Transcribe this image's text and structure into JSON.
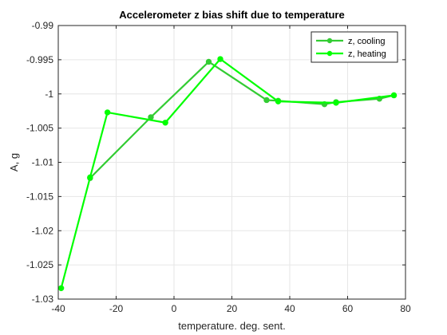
{
  "chart_data": {
    "type": "line",
    "title": "Accelerometer z bias shift due to temperature",
    "xlabel": "temperature. deg. sent.",
    "ylabel": "A, g",
    "xlim": [
      -40,
      80
    ],
    "ylim": [
      -1.03,
      -0.99
    ],
    "xticks": [
      "-40",
      "-20",
      "0",
      "20",
      "40",
      "60",
      "80"
    ],
    "yticks": [
      "-0.99",
      "-0.995",
      "-1",
      "-1.005",
      "-1.01",
      "-1.015",
      "-1.02",
      "-1.025",
      "-1.03"
    ],
    "grid": true,
    "legend_position": "top-right",
    "series": [
      {
        "name": "z, cooling",
        "color": "#33cc33",
        "x": [
          76,
          71,
          56,
          52,
          36,
          32,
          12,
          -8,
          -29
        ],
        "y": [
          -1.0002,
          -1.0007,
          -1.0012,
          -1.0015,
          -1.001,
          -1.0009,
          -0.9953,
          -1.0034,
          -1.0123
        ]
      },
      {
        "name": "z, heating",
        "color": "#00ff00",
        "x": [
          -39,
          -29,
          -23,
          -3,
          16,
          36,
          56,
          76
        ],
        "y": [
          -1.0284,
          -1.0122,
          -1.0027,
          -1.0042,
          -0.9949,
          -1.0011,
          -1.0013,
          -1.0002
        ]
      }
    ]
  }
}
